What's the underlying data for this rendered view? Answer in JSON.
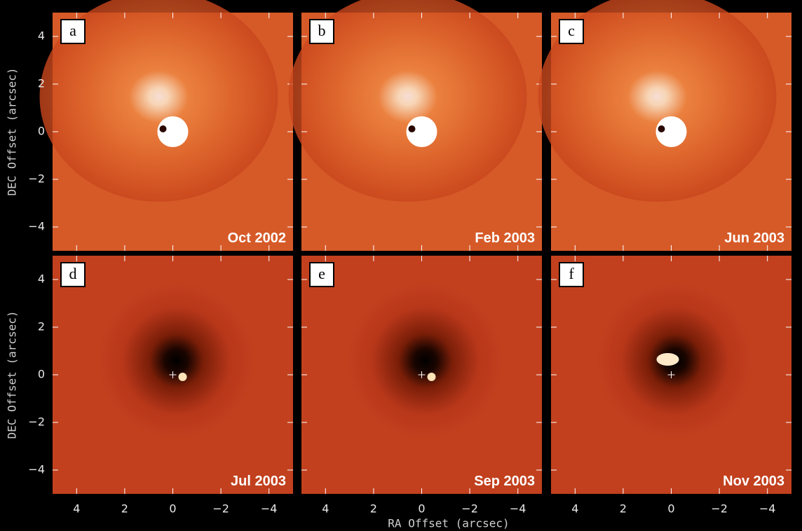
{
  "figure": {
    "xlabel": "RA Offset (arcsec)",
    "ylabel": "DEC Offset (arcsec)",
    "xlim": [
      5,
      -5
    ],
    "ylim": [
      -5,
      5
    ],
    "xticks": [
      {
        "value": 4,
        "label": "4"
      },
      {
        "value": 2,
        "label": "2"
      },
      {
        "value": 0,
        "label": "0"
      },
      {
        "value": -2,
        "label": "−2"
      },
      {
        "value": -4,
        "label": "−4"
      }
    ],
    "yticks": [
      {
        "value": -4,
        "label": "−4"
      },
      {
        "value": -2,
        "label": "−2"
      },
      {
        "value": 0,
        "label": "0"
      },
      {
        "value": 2,
        "label": "2"
      },
      {
        "value": 4,
        "label": "4"
      }
    ],
    "panels": [
      {
        "letter": "a",
        "date": "Oct 2002"
      },
      {
        "letter": "b",
        "date": "Feb 2003"
      },
      {
        "letter": "c",
        "date": "Jun 2003"
      },
      {
        "letter": "d",
        "date": "Jul 2003"
      },
      {
        "letter": "e",
        "date": "Sep 2003"
      },
      {
        "letter": "f",
        "date": "Nov 2003"
      }
    ]
  }
}
